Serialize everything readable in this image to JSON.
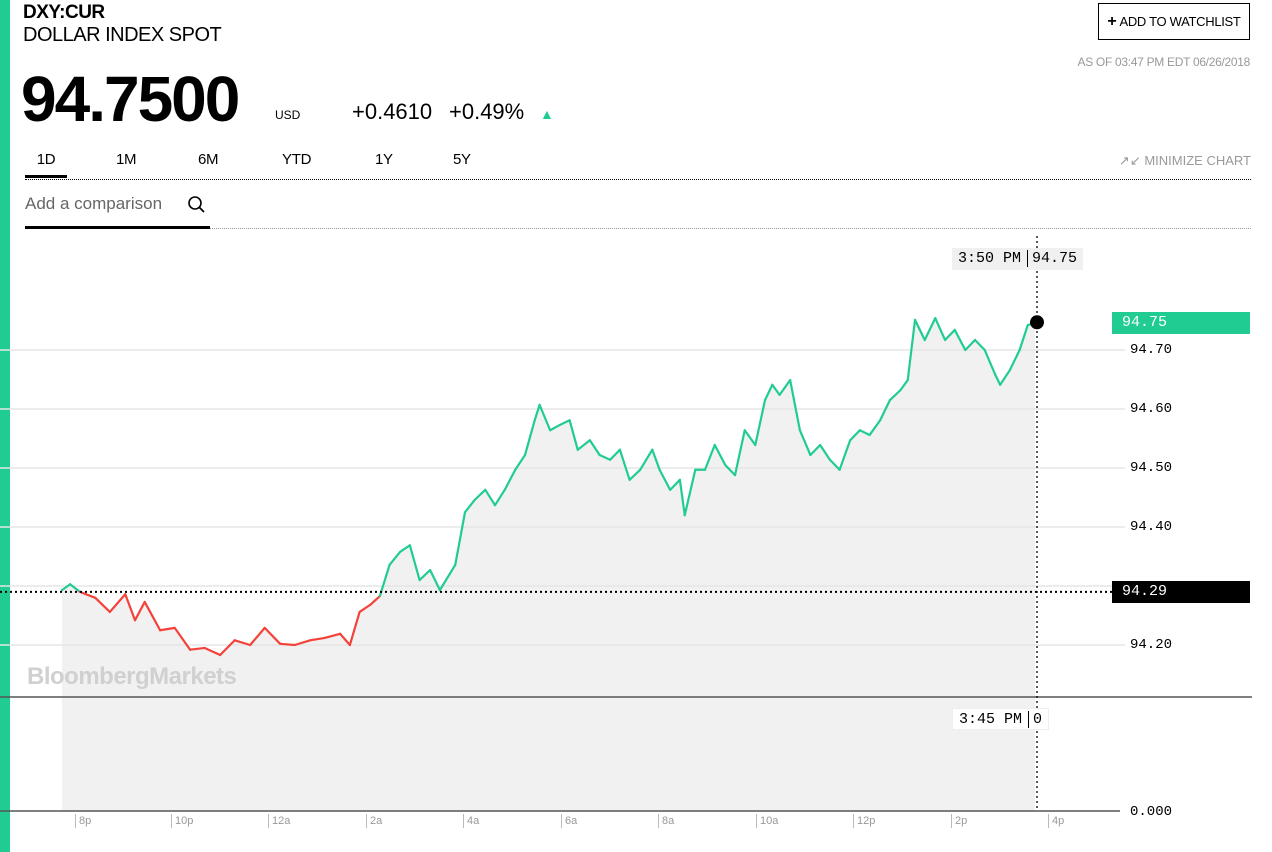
{
  "header": {
    "ticker": "DXY:CUR",
    "name": "DOLLAR INDEX SPOT",
    "price": "94.7500",
    "currency": "USD",
    "change": "+0.4610",
    "change_pct": "+0.49%",
    "direction_icon": "triangle-up-icon",
    "watchlist_label": "ADD TO WATCHLIST",
    "as_of": "AS OF 03:47 PM EDT 06/26/2018"
  },
  "tabs": [
    {
      "label": "1D",
      "active": true
    },
    {
      "label": "1M"
    },
    {
      "label": "6M"
    },
    {
      "label": "YTD"
    },
    {
      "label": "1Y"
    },
    {
      "label": "5Y"
    }
  ],
  "minimize_label": "MINIMIZE CHART",
  "comparison": {
    "placeholder": "Add a comparison"
  },
  "watermark": "BloombergMarkets",
  "colors": {
    "up": "#21cc93",
    "down": "#f4423a",
    "fill": "#f1f1f1"
  },
  "chart_data": {
    "type": "line",
    "previous_close": 94.29,
    "ylim": [
      94.115,
      94.8
    ],
    "y_ticks": [
      "94.70",
      "94.60",
      "94.50",
      "94.40",
      "94.20"
    ],
    "x_ticks": [
      "8p",
      "10p",
      "12a",
      "2a",
      "4a",
      "6a",
      "8a",
      "10a",
      "12p",
      "2p",
      "4p"
    ],
    "last_label": "94.75",
    "prev_close_label": "94.29",
    "crosshair_top": {
      "time": "3:50 PM",
      "value": "94.75"
    },
    "crosshair_bottom": {
      "time": "3:45 PM",
      "value": "0"
    },
    "volume_axis_label": "0.000",
    "grid": true,
    "points": [
      [
        "19:44",
        94.293
      ],
      [
        "19:54",
        94.303
      ],
      [
        "20:06",
        94.29
      ],
      [
        "20:25",
        94.28
      ],
      [
        "20:43",
        94.256
      ],
      [
        "21:02",
        94.286
      ],
      [
        "21:14",
        94.242
      ],
      [
        "21:26",
        94.273
      ],
      [
        "21:45",
        94.225
      ],
      [
        "22:03",
        94.229
      ],
      [
        "22:22",
        94.192
      ],
      [
        "22:40",
        94.195
      ],
      [
        "22:59",
        94.183
      ],
      [
        "23:17",
        94.208
      ],
      [
        "23:36",
        94.2
      ],
      [
        "23:54",
        94.229
      ],
      [
        "00:13",
        94.202
      ],
      [
        "00:31",
        94.2
      ],
      [
        "00:50",
        94.208
      ],
      [
        "01:08",
        94.212
      ],
      [
        "01:27",
        94.219
      ],
      [
        "01:39",
        94.2
      ],
      [
        "01:51",
        94.256
      ],
      [
        "02:04",
        94.268
      ],
      [
        "02:16",
        94.283
      ],
      [
        "02:28",
        94.336
      ],
      [
        "02:41",
        94.358
      ],
      [
        "02:53",
        94.369
      ],
      [
        "03:05",
        94.31
      ],
      [
        "03:18",
        94.327
      ],
      [
        "03:30",
        94.293
      ],
      [
        "03:49",
        94.336
      ],
      [
        "04:01",
        94.425
      ],
      [
        "04:13",
        94.446
      ],
      [
        "04:26",
        94.463
      ],
      [
        "04:38",
        94.437
      ],
      [
        "04:50",
        94.463
      ],
      [
        "05:03",
        94.497
      ],
      [
        "05:15",
        94.522
      ],
      [
        "05:27",
        94.581
      ],
      [
        "05:33",
        94.607
      ],
      [
        "05:46",
        94.564
      ],
      [
        "05:58",
        94.573
      ],
      [
        "06:10",
        94.581
      ],
      [
        "06:20",
        94.531
      ],
      [
        "06:35",
        94.547
      ],
      [
        "06:47",
        94.522
      ],
      [
        "07:00",
        94.514
      ],
      [
        "07:12",
        94.531
      ],
      [
        "07:24",
        94.48
      ],
      [
        "07:37",
        94.497
      ],
      [
        "07:52",
        94.531
      ],
      [
        "08:01",
        94.497
      ],
      [
        "08:14",
        94.463
      ],
      [
        "08:26",
        94.48
      ],
      [
        "08:32",
        94.42
      ],
      [
        "08:45",
        94.497
      ],
      [
        "08:57",
        94.497
      ],
      [
        "09:09",
        94.539
      ],
      [
        "09:22",
        94.505
      ],
      [
        "09:34",
        94.488
      ],
      [
        "09:46",
        94.564
      ],
      [
        "09:59",
        94.539
      ],
      [
        "10:11",
        94.615
      ],
      [
        "10:20",
        94.641
      ],
      [
        "10:29",
        94.624
      ],
      [
        "10:42",
        94.649
      ],
      [
        "10:54",
        94.564
      ],
      [
        "11:07",
        94.522
      ],
      [
        "11:19",
        94.539
      ],
      [
        "11:31",
        94.514
      ],
      [
        "11:43",
        94.497
      ],
      [
        "11:56",
        94.547
      ],
      [
        "12:08",
        94.564
      ],
      [
        "12:20",
        94.556
      ],
      [
        "12:33",
        94.581
      ],
      [
        "12:45",
        94.615
      ],
      [
        "12:58",
        94.632
      ],
      [
        "13:07",
        94.649
      ],
      [
        "13:16",
        94.751
      ],
      [
        "13:28",
        94.717
      ],
      [
        "13:41",
        94.754
      ],
      [
        "13:53",
        94.717
      ],
      [
        "14:05",
        94.734
      ],
      [
        "14:18",
        94.7
      ],
      [
        "14:30",
        94.717
      ],
      [
        "14:42",
        94.7
      ],
      [
        "14:55",
        94.658
      ],
      [
        "15:01",
        94.641
      ],
      [
        "15:13",
        94.666
      ],
      [
        "15:25",
        94.7
      ],
      [
        "15:35",
        94.742
      ],
      [
        "15:44",
        94.747
      ]
    ]
  }
}
